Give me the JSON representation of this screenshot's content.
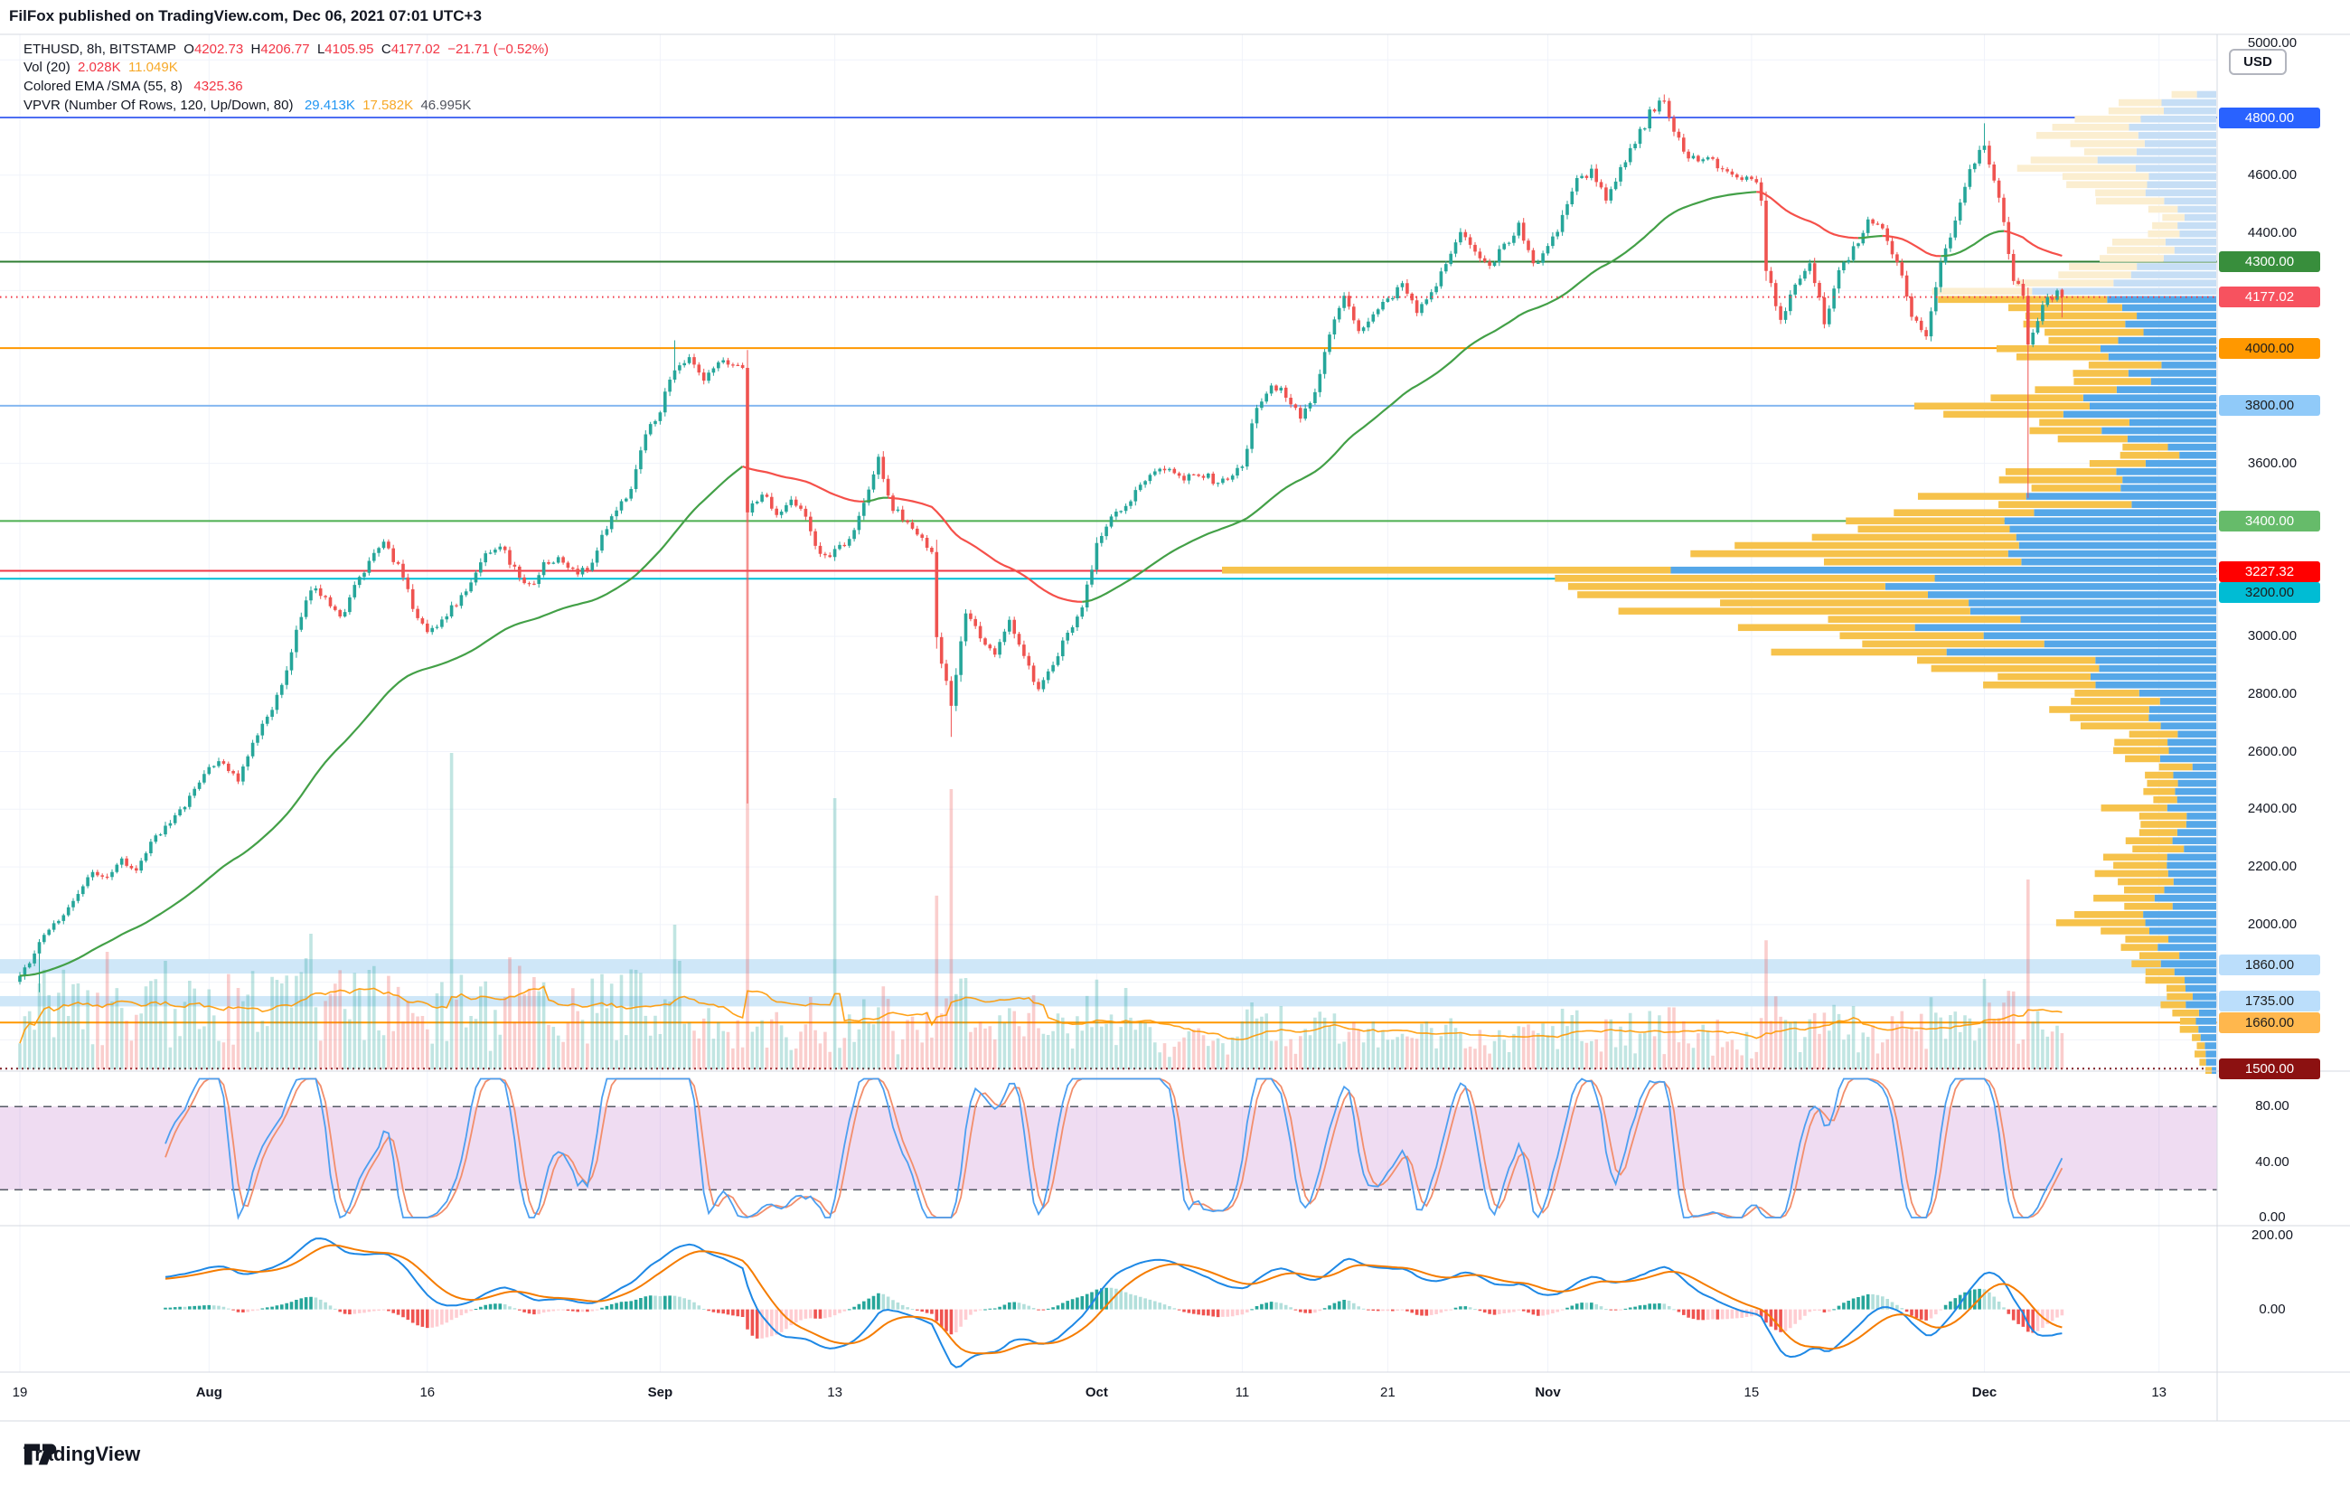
{
  "header": {
    "publish_line": "FilFox published on TradingView.com, Dec 06, 2021 07:01 UTC+3"
  },
  "legend": {
    "row1": {
      "symbol": "ETHUSD, 8h, BITSTAMP",
      "o_label": "O",
      "o": "4202.73",
      "h_label": "H",
      "h": "4206.77",
      "l_label": "L",
      "l": "4105.95",
      "c_label": "C",
      "c": "4177.02",
      "change": "−21.71 (−0.52%)"
    },
    "row2": {
      "label": "Vol (20)",
      "vol": "2.028K",
      "ma": "11.049K"
    },
    "row3": {
      "label": "Colored EMA /SMA (55, 8)",
      "value": "4325.36"
    },
    "row4": {
      "label": "VPVR (Number Of Rows, 120, Up/Down, 80)",
      "up": "29.413K",
      "down": "17.582K",
      "total": "46.995K"
    }
  },
  "price_axis": {
    "currency": "USD",
    "plain_ticks": [
      {
        "label": "5000.00",
        "price": 5000
      },
      {
        "label": "4600.00",
        "price": 4600
      },
      {
        "label": "4400.00",
        "price": 4400
      },
      {
        "label": "3600.00",
        "price": 3600
      },
      {
        "label": "3000.00",
        "price": 3000
      },
      {
        "label": "2800.00",
        "price": 2800
      },
      {
        "label": "2600.00",
        "price": 2600
      },
      {
        "label": "2400.00",
        "price": 2400
      },
      {
        "label": "2200.00",
        "price": 2200
      },
      {
        "label": "2000.00",
        "price": 2000
      }
    ],
    "stoch_axis": [
      {
        "label": "80.00",
        "v": 80
      },
      {
        "label": "40.00",
        "v": 40
      },
      {
        "label": "0.00",
        "v": 0
      }
    ],
    "macd_axis": [
      {
        "label": "200.00",
        "v": 200
      },
      {
        "label": "0.00",
        "v": 0
      }
    ]
  },
  "time_axis": [
    {
      "label": "19",
      "day": 0,
      "bold": false
    },
    {
      "label": "Aug",
      "day": 13,
      "bold": true
    },
    {
      "label": "16",
      "day": 28,
      "bold": false
    },
    {
      "label": "Sep",
      "day": 44,
      "bold": true
    },
    {
      "label": "13",
      "day": 56,
      "bold": false
    },
    {
      "label": "Oct",
      "day": 74,
      "bold": true
    },
    {
      "label": "11",
      "day": 84,
      "bold": false
    },
    {
      "label": "21",
      "day": 94,
      "bold": false
    },
    {
      "label": "Nov",
      "day": 105,
      "bold": true
    },
    {
      "label": "15",
      "day": 119,
      "bold": false
    },
    {
      "label": "Dec",
      "day": 135,
      "bold": true
    },
    {
      "label": "13",
      "day": 147,
      "bold": false
    }
  ],
  "footer": {
    "brand": "TradingView"
  },
  "chart_data": {
    "type": "candlestick",
    "symbol": "ETHUSD",
    "interval": "8h",
    "exchange": "BITSTAMP",
    "ohlc_last": {
      "open": 4202.73,
      "high": 4206.77,
      "low": 4105.95,
      "close": 4177.02
    },
    "current_price": {
      "label": "4177.02",
      "price": 4177.02,
      "line_color": "#F23645",
      "badge_bg": "#F7525F",
      "badge_fg": "#FFFFFF"
    },
    "ylim": [
      1500,
      5000
    ],
    "price_path_anchors": [
      [
        0,
        1815
      ],
      [
        1,
        1900
      ],
      [
        2,
        1990
      ],
      [
        3,
        2030
      ],
      [
        4,
        2110
      ],
      [
        5,
        2180
      ],
      [
        6,
        2170
      ],
      [
        7,
        2230
      ],
      [
        8,
        2180
      ],
      [
        9,
        2280
      ],
      [
        10,
        2345
      ],
      [
        11,
        2390
      ],
      [
        12,
        2465
      ],
      [
        13,
        2550
      ],
      [
        14,
        2560
      ],
      [
        15,
        2500
      ],
      [
        16,
        2620
      ],
      [
        17,
        2725
      ],
      [
        18,
        2820
      ],
      [
        19,
        3015
      ],
      [
        20,
        3160
      ],
      [
        21,
        3145
      ],
      [
        22,
        3060
      ],
      [
        23,
        3170
      ],
      [
        24,
        3250
      ],
      [
        25,
        3330
      ],
      [
        26,
        3240
      ],
      [
        27,
        3105
      ],
      [
        28,
        3010
      ],
      [
        29,
        3060
      ],
      [
        30,
        3115
      ],
      [
        31,
        3180
      ],
      [
        32,
        3290
      ],
      [
        33,
        3320
      ],
      [
        34,
        3230
      ],
      [
        35,
        3170
      ],
      [
        36,
        3245
      ],
      [
        37,
        3270
      ],
      [
        38,
        3225
      ],
      [
        39,
        3230
      ],
      [
        40,
        3340
      ],
      [
        41,
        3435
      ],
      [
        42,
        3520
      ],
      [
        43,
        3700
      ],
      [
        44,
        3790
      ],
      [
        45,
        3935
      ],
      [
        46,
        3960
      ],
      [
        47,
        3880
      ],
      [
        48,
        3945
      ],
      [
        49.7,
        3940
      ],
      [
        50,
        3430
      ],
      [
        51,
        3500
      ],
      [
        52,
        3420
      ],
      [
        53,
        3485
      ],
      [
        54,
        3410
      ],
      [
        55,
        3275
      ],
      [
        56,
        3290
      ],
      [
        57,
        3330
      ],
      [
        58,
        3460
      ],
      [
        59,
        3615
      ],
      [
        60,
        3445
      ],
      [
        61,
        3395
      ],
      [
        62,
        3330
      ],
      [
        62.7,
        3290
      ],
      [
        63,
        2985
      ],
      [
        64,
        2760
      ],
      [
        65,
        3080
      ],
      [
        66,
        3000
      ],
      [
        67,
        2935
      ],
      [
        68,
        3055
      ],
      [
        69,
        2930
      ],
      [
        70,
        2805
      ],
      [
        71,
        2900
      ],
      [
        72,
        3010
      ],
      [
        73,
        3110
      ],
      [
        74,
        3310
      ],
      [
        75,
        3425
      ],
      [
        76,
        3460
      ],
      [
        77,
        3520
      ],
      [
        78,
        3560
      ],
      [
        79,
        3590
      ],
      [
        80,
        3555
      ],
      [
        81,
        3570
      ],
      [
        82,
        3540
      ],
      [
        83,
        3555
      ],
      [
        84,
        3600
      ],
      [
        85,
        3790
      ],
      [
        86,
        3870
      ],
      [
        87,
        3840
      ],
      [
        88,
        3760
      ],
      [
        89,
        3850
      ],
      [
        90,
        4060
      ],
      [
        91,
        4165
      ],
      [
        92,
        4055
      ],
      [
        93,
        4125
      ],
      [
        94,
        4170
      ],
      [
        95,
        4220
      ],
      [
        96,
        4135
      ],
      [
        97,
        4200
      ],
      [
        98,
        4290
      ],
      [
        99,
        4410
      ],
      [
        100,
        4320
      ],
      [
        101,
        4290
      ],
      [
        102,
        4360
      ],
      [
        103,
        4420
      ],
      [
        104,
        4290
      ],
      [
        105,
        4340
      ],
      [
        106,
        4450
      ],
      [
        107,
        4580
      ],
      [
        108,
        4610
      ],
      [
        109,
        4520
      ],
      [
        110,
        4620
      ],
      [
        111,
        4710
      ],
      [
        112,
        4810
      ],
      [
        113,
        4860
      ],
      [
        114,
        4720
      ],
      [
        115,
        4650
      ],
      [
        116,
        4680
      ],
      [
        117,
        4620
      ],
      [
        118,
        4600
      ],
      [
        119,
        4570
      ],
      [
        119.6,
        4560
      ],
      [
        120,
        4280
      ],
      [
        121,
        4100
      ],
      [
        122,
        4220
      ],
      [
        123,
        4300
      ],
      [
        124,
        4090
      ],
      [
        125,
        4270
      ],
      [
        126,
        4340
      ],
      [
        127,
        4450
      ],
      [
        128,
        4420
      ],
      [
        129,
        4300
      ],
      [
        130,
        4120
      ],
      [
        131,
        4050
      ],
      [
        132,
        4300
      ],
      [
        133,
        4450
      ],
      [
        134,
        4630
      ],
      [
        135,
        4710
      ],
      [
        136,
        4520
      ],
      [
        137,
        4230
      ],
      [
        137.6,
        4230
      ],
      [
        138,
        4010
      ],
      [
        139,
        4150
      ],
      [
        140,
        4200
      ],
      [
        140.33,
        4177
      ]
    ],
    "wick_overrides": [
      {
        "i": 4,
        "low": 1765
      },
      {
        "i": 135,
        "high": 4027
      },
      {
        "i": 150,
        "low": 2420
      },
      {
        "i": 192,
        "low": 2651
      },
      {
        "i": 339,
        "high": 4880
      },
      {
        "i": 405,
        "high": 4780
      },
      {
        "i": 414,
        "low": 3480
      }
    ],
    "levels": [
      {
        "price": 4800,
        "label": "4800.00",
        "color": "#4E6EF2",
        "style": "solid",
        "badge_bg": "#2962FF",
        "badge_fg": "#FFFFFF"
      },
      {
        "price": 4300,
        "label": "4300.00",
        "color": "#2E7D32",
        "style": "solid",
        "badge_bg": "#388E3C",
        "badge_fg": "#FFFFFF"
      },
      {
        "price": 4000,
        "label": "4000.00",
        "color": "#FF9800",
        "style": "solid",
        "badge_bg": "#FF9800",
        "badge_fg": "#1D1D1D"
      },
      {
        "price": 3800,
        "label": "3800.00",
        "color": "#84B7F0",
        "style": "solid",
        "badge_bg": "#90CAF9",
        "badge_fg": "#1D1D1D"
      },
      {
        "price": 3400,
        "label": "3400.00",
        "color": "#4CAF50",
        "style": "solid",
        "badge_bg": "#66BB6A",
        "badge_fg": "#FFFFFF"
      },
      {
        "price": 3227.32,
        "label": "3227.32",
        "color": "#F23645",
        "style": "solid",
        "badge_bg": "#FF0000",
        "badge_fg": "#FFFFFF",
        "badge_y": 632
      },
      {
        "price": 3200,
        "label": "3200.00",
        "color": "#00BCD4",
        "style": "solid",
        "badge_bg": "#00BCD4",
        "badge_fg": "#1D1D1D",
        "badge_y": 655
      },
      {
        "price": 1660,
        "label": "1660.00",
        "color": "#FF9800",
        "style": "solid",
        "badge_bg": "#FFB74D",
        "badge_fg": "#1D1D1D"
      },
      {
        "price": 1500,
        "label": "1500.00",
        "color": "#7E1E26",
        "style": "dotted",
        "badge_bg": "#8C1111",
        "badge_fg": "#FFFFFF"
      }
    ],
    "bands": [
      {
        "from": 1880,
        "to": 1830,
        "label": "1860.00",
        "price": 1860,
        "fill": "#CFE7F8",
        "badge_bg": "#BBDEFB",
        "badge_fg": "#1D1D1D"
      },
      {
        "from": 1752,
        "to": 1716,
        "label": "1735.00",
        "price": 1735,
        "fill": "#CFE7F8",
        "badge_bg": "#BBDEFB",
        "badge_fg": "#1D1D1D"
      }
    ],
    "vpvr": {
      "rows": 120,
      "up_down_pct": 80,
      "poc_price": 3227.32,
      "poc_width": 1100,
      "colors": {
        "up": "#55A7E8",
        "down": "#F6C24B",
        "up_faded": "#C6DEF5",
        "down_faded": "#FBEED0"
      },
      "profile_controls": [
        [
          4880,
          60
        ],
        [
          4800,
          150
        ],
        [
          4750,
          190
        ],
        [
          4700,
          160
        ],
        [
          4650,
          200
        ],
        [
          4600,
          210
        ],
        [
          4550,
          150
        ],
        [
          4500,
          110
        ],
        [
          4450,
          70
        ],
        [
          4400,
          100
        ],
        [
          4350,
          130
        ],
        [
          4300,
          170
        ],
        [
          4250,
          200
        ],
        [
          4200,
          260
        ],
        [
          4150,
          290
        ],
        [
          4100,
          260
        ],
        [
          4050,
          220
        ],
        [
          4000,
          240
        ],
        [
          3950,
          190
        ],
        [
          3900,
          180
        ],
        [
          3850,
          200
        ],
        [
          3800,
          280
        ],
        [
          3750,
          230
        ],
        [
          3700,
          160
        ],
        [
          3650,
          90
        ],
        [
          3600,
          150
        ],
        [
          3550,
          220
        ],
        [
          3500,
          260
        ],
        [
          3450,
          330
        ],
        [
          3400,
          400
        ],
        [
          3350,
          450
        ],
        [
          3300,
          500
        ],
        [
          3250,
          560
        ],
        [
          3227,
          1100
        ],
        [
          3200,
          680
        ],
        [
          3150,
          620
        ],
        [
          3100,
          560
        ],
        [
          3050,
          500
        ],
        [
          3000,
          440
        ],
        [
          2950,
          410
        ],
        [
          2900,
          330
        ],
        [
          2850,
          260
        ],
        [
          2800,
          200
        ],
        [
          2750,
          160
        ],
        [
          2700,
          130
        ],
        [
          2650,
          110
        ],
        [
          2600,
          95
        ],
        [
          2550,
          75
        ],
        [
          2500,
          65
        ],
        [
          2450,
          85
        ],
        [
          2400,
          105
        ],
        [
          2350,
          85
        ],
        [
          2300,
          75
        ],
        [
          2250,
          95
        ],
        [
          2200,
          120
        ],
        [
          2150,
          125
        ],
        [
          2100,
          105
        ],
        [
          2050,
          125
        ],
        [
          2000,
          150
        ],
        [
          1950,
          115
        ],
        [
          1900,
          95
        ],
        [
          1850,
          75
        ],
        [
          1800,
          65
        ],
        [
          1750,
          55
        ],
        [
          1700,
          45
        ],
        [
          1650,
          35
        ],
        [
          1600,
          28
        ],
        [
          1550,
          22
        ],
        [
          1500,
          16
        ]
      ]
    },
    "volume": {
      "ma_period": 20,
      "last": "2.028K",
      "ma_last": "11.049K",
      "spikes": {
        "4": 95,
        "12": 95,
        "18": 130,
        "30": 120,
        "45": 90,
        "54": 95,
        "60": 150,
        "72": 110,
        "89": 350,
        "100": 80,
        "135": 160,
        "136": 120,
        "150": 630,
        "168": 300,
        "192": 310,
        "228": 90,
        "260": 70,
        "320": 60,
        "350": 55,
        "378": 70,
        "398": 60,
        "405": 100,
        "414": 210
      }
    },
    "stoch_rsi": {
      "params": "3, 3, 14, 14, close",
      "k": 38.74,
      "d": 34.05,
      "upper": 80,
      "lower": 20,
      "k_color": "#4C9FF0",
      "d_color": "#F28E6C"
    },
    "macd": {
      "params": "12, 26, close, 9",
      "hist": -35.74,
      "macd": -61.95,
      "signal": -26.21,
      "macd_color": "#1E88E5",
      "signal_color": "#F57C00"
    },
    "ema": {
      "period": 55,
      "value": 4325.36,
      "up_color": "#43A047",
      "down_color": "#F5504A"
    }
  }
}
